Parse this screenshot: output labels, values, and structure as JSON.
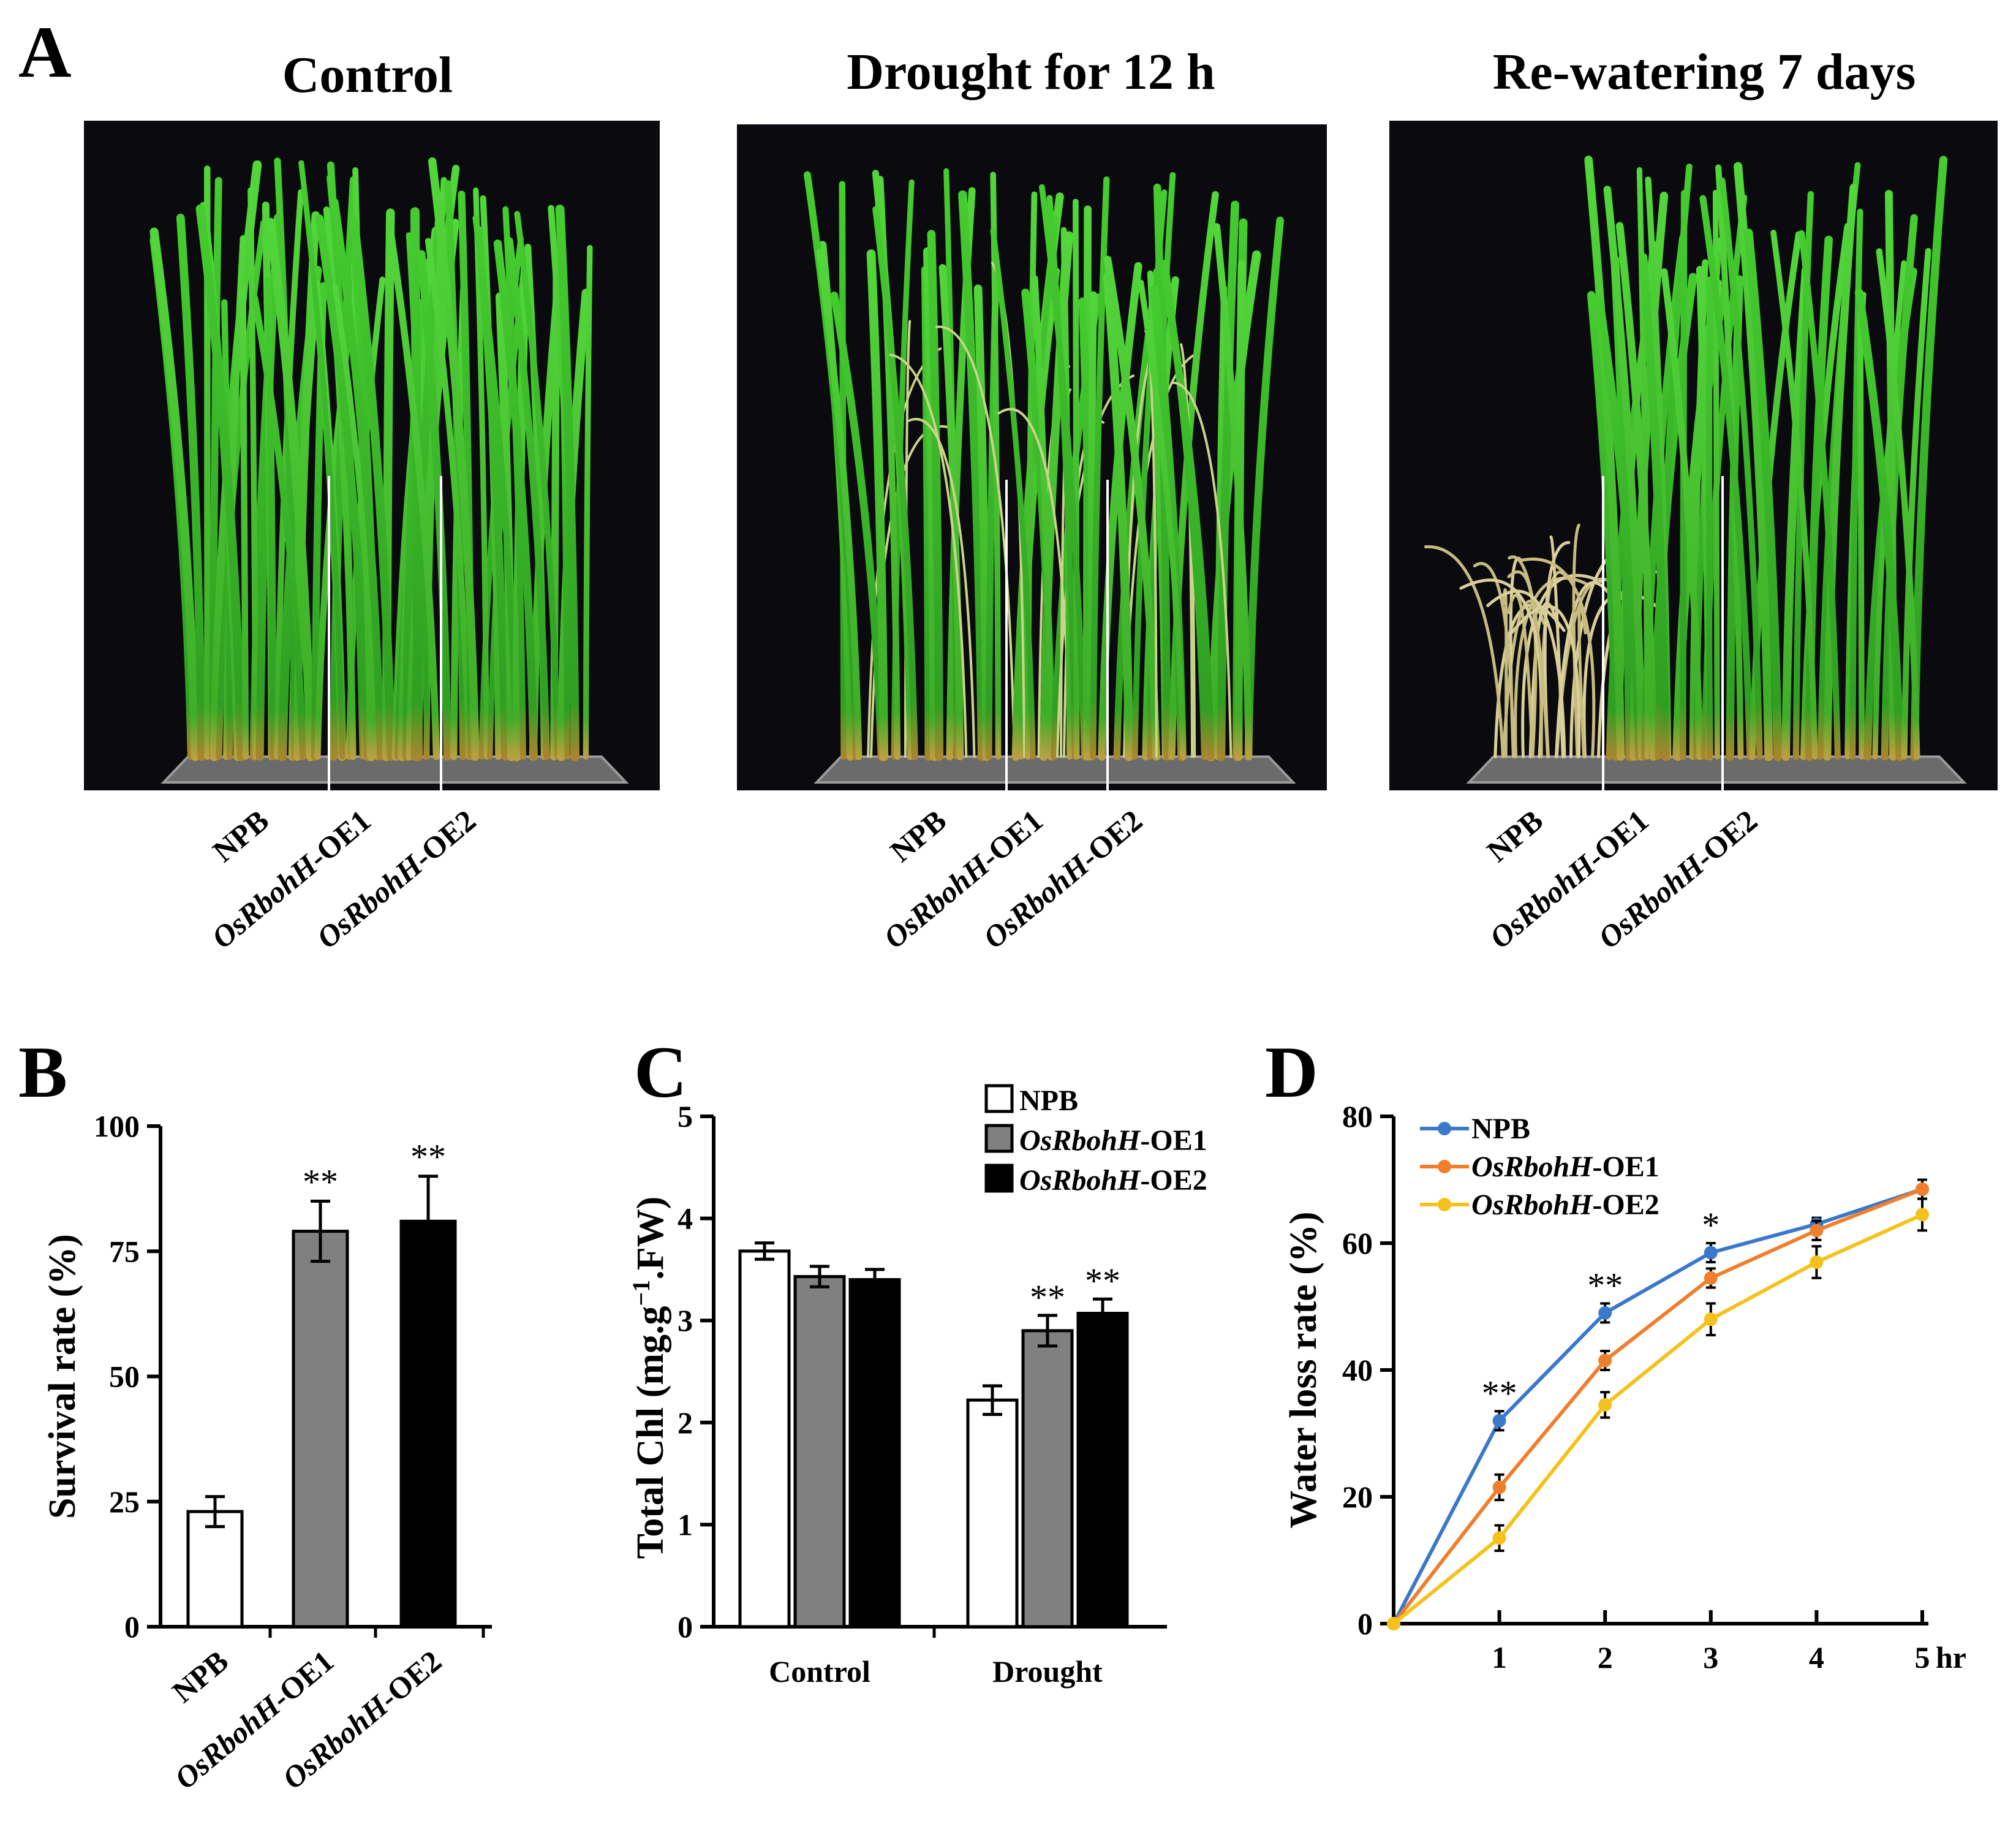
{
  "panel_a": {
    "label": "A",
    "photos": [
      {
        "title": "Control",
        "labels": [
          "NPB",
          "OsRbohH",
          "-OE1",
          "OsRbohH",
          "-OE2"
        ]
      },
      {
        "title": "Drought for 12 h",
        "labels": [
          "NPB",
          "OsRbohH",
          "-OE1",
          "OsRbohH",
          "-OE2"
        ]
      },
      {
        "title": "Re-watering 7 days",
        "labels": [
          "NPB",
          "OsRbohH",
          "-OE1",
          "OsRbohH",
          "-OE2"
        ]
      }
    ]
  },
  "chart_data": [
    {
      "panel": "B",
      "type": "bar",
      "ylabel": "Survival rate (%)",
      "ylim": [
        0,
        100
      ],
      "yticks": [
        "0",
        "25",
        "50",
        "75",
        "100"
      ],
      "categories": [
        "NPB",
        "OsRbohH-OE1",
        "OsRbohH-OE2"
      ],
      "category_labels": [
        [
          "NPB",
          ""
        ],
        [
          "OsRbohH",
          "-OE1"
        ],
        [
          "OsRbohH",
          "-OE2"
        ]
      ],
      "values": [
        23,
        79,
        81
      ],
      "errors": [
        3,
        6,
        9
      ],
      "significance": [
        "",
        "**",
        "**"
      ],
      "colors": [
        "#ffffff",
        "#808080",
        "#000000"
      ]
    },
    {
      "panel": "C",
      "type": "bar",
      "ylabel": "Total Chl (mg.g-1.FW)",
      "ylabel_parts": [
        "Total Chl (mg.g",
        "−1",
        ".FW)"
      ],
      "ylim": [
        0,
        5
      ],
      "yticks": [
        "0",
        "1",
        "2",
        "3",
        "4",
        "5"
      ],
      "categories": [
        "Control",
        "Drought"
      ],
      "series": [
        {
          "name": "NPB",
          "name_italic": "",
          "name_rest": "NPB",
          "color": "#ffffff",
          "values": [
            3.68,
            2.22
          ],
          "errors": [
            0.08,
            0.14
          ],
          "significance": [
            "",
            ""
          ]
        },
        {
          "name": "OsRbohH-OE1",
          "name_italic": "OsRbohH",
          "name_rest": "-OE1",
          "color": "#808080",
          "values": [
            3.43,
            2.9
          ],
          "errors": [
            0.1,
            0.15
          ],
          "significance": [
            "",
            "**"
          ]
        },
        {
          "name": "OsRbohH-OE2",
          "name_italic": "OsRbohH",
          "name_rest": "-OE2",
          "color": "#000000",
          "values": [
            3.4,
            3.07
          ],
          "errors": [
            0.1,
            0.14
          ],
          "significance": [
            "",
            "**"
          ]
        }
      ]
    },
    {
      "panel": "D",
      "type": "line",
      "ylabel": "Water loss rate (%)",
      "xlabel_unit": "hr",
      "ylim": [
        0,
        80
      ],
      "yticks": [
        "0",
        "20",
        "40",
        "60",
        "80"
      ],
      "x": [
        0,
        1,
        2,
        3,
        4,
        5
      ],
      "xticks": [
        "1",
        "2",
        "3",
        "4",
        "5"
      ],
      "significance": {
        "1": "**",
        "2": "**",
        "3": "*"
      },
      "series": [
        {
          "name": "NPB",
          "name_italic": "",
          "name_rest": "NPB",
          "color": "#3a78c9",
          "values": [
            0,
            32,
            49,
            58.5,
            63,
            68.5
          ],
          "errors": [
            0,
            1.5,
            1.5,
            1.5,
            1.0,
            1.5
          ]
        },
        {
          "name": "OsRbohH-OE1",
          "name_italic": "OsRbohH",
          "name_rest": "-OE1",
          "color": "#f07f2d",
          "values": [
            0,
            21.5,
            41.5,
            54.5,
            62,
            68.5
          ],
          "errors": [
            0,
            2.0,
            1.5,
            1.5,
            1.5,
            1.5
          ]
        },
        {
          "name": "OsRbohH-OE2",
          "name_italic": "OsRbohH",
          "name_rest": "-OE2",
          "color": "#f5c21b",
          "values": [
            0,
            13.5,
            34.5,
            48,
            57,
            64.5
          ],
          "errors": [
            0,
            2.0,
            2.0,
            2.5,
            2.5,
            2.5
          ]
        }
      ]
    }
  ]
}
